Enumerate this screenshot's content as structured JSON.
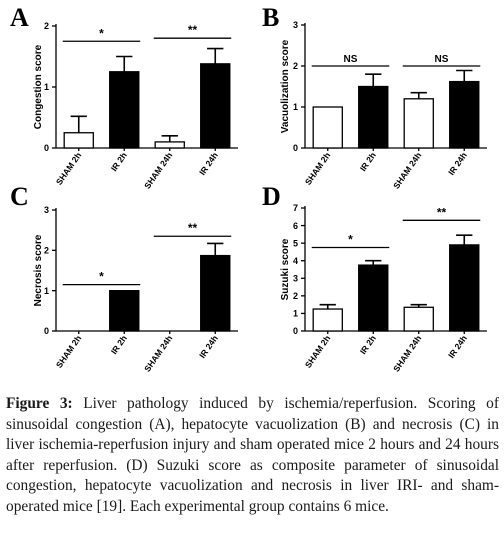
{
  "caption": {
    "label": "Figure 3:",
    "text": "Liver pathology induced by ischemia/reperfusion. Scoring of sinusoidal congestion (A), hepatocyte vacuolization (B) and necrosis (C) in liver ischemia-reperfusion injury and sham operated mice 2 hours and 24 hours after reperfusion. (D) Suzuki score as composite parameter of sinusoidal congestion, hepatocyte vacuolization and necrosis in liver IRI- and sham-operated mice [19]. Each experimental group contains 6 mice."
  },
  "chart_data": [
    {
      "panel": "A",
      "type": "bar",
      "ylabel": "Congestion score",
      "categories": [
        "SHAM 2h",
        "IR 2h",
        "SHAM 24h",
        "IR 24h"
      ],
      "values": [
        0.25,
        1.25,
        0.1,
        1.38
      ],
      "errors": [
        0.27,
        0.25,
        0.1,
        0.25
      ],
      "fills": [
        "#ffffff",
        "#000000",
        "#ffffff",
        "#000000"
      ],
      "ylim": [
        0,
        2
      ],
      "yticks": [
        "0",
        "1",
        "2"
      ],
      "significance": [
        {
          "from": 0,
          "to": 1,
          "label": "*",
          "y": 1.75
        },
        {
          "from": 2,
          "to": 3,
          "label": "**",
          "y": 1.8
        }
      ]
    },
    {
      "panel": "B",
      "type": "bar",
      "ylabel": "Vacuolization score",
      "categories": [
        "SHAM 2h",
        "IR 2h",
        "SHAM 24h",
        "IR 24h"
      ],
      "values": [
        1.0,
        1.5,
        1.2,
        1.62
      ],
      "errors": [
        0.0,
        0.3,
        0.15,
        0.27
      ],
      "fills": [
        "#ffffff",
        "#000000",
        "#ffffff",
        "#000000"
      ],
      "ylim": [
        0,
        3
      ],
      "yticks": [
        "0",
        "1",
        "2",
        "3"
      ],
      "significance": [
        {
          "from": 0,
          "to": 1,
          "label": "NS",
          "y": 2.0
        },
        {
          "from": 2,
          "to": 3,
          "label": "NS",
          "y": 2.0
        }
      ]
    },
    {
      "panel": "C",
      "type": "bar",
      "ylabel": "Necrosis score",
      "categories": [
        "SHAM 2h",
        "IR 2h",
        "SHAM 24h",
        "IR 24h"
      ],
      "values": [
        0,
        1.0,
        0,
        1.87
      ],
      "errors": [
        0,
        0,
        0,
        0.3
      ],
      "fills": [
        "#ffffff",
        "#000000",
        "#ffffff",
        "#000000"
      ],
      "ylim": [
        0,
        3
      ],
      "yticks": [
        "0",
        "1",
        "2",
        "3"
      ],
      "significance": [
        {
          "from": 0,
          "to": 1,
          "label": "*",
          "y": 1.15
        },
        {
          "from": 2,
          "to": 3,
          "label": "**",
          "y": 2.35
        }
      ]
    },
    {
      "panel": "D",
      "type": "bar",
      "ylabel": "Suzuki score",
      "categories": [
        "SHAM 2h",
        "IR 2h",
        "SHAM 24h",
        "IR 24h"
      ],
      "values": [
        1.25,
        3.75,
        1.35,
        4.9
      ],
      "errors": [
        0.25,
        0.25,
        0.15,
        0.55
      ],
      "fills": [
        "#ffffff",
        "#000000",
        "#ffffff",
        "#000000"
      ],
      "ylim": [
        0,
        7
      ],
      "yticks": [
        "0",
        "1",
        "2",
        "3",
        "4",
        "5",
        "6",
        "7"
      ],
      "significance": [
        {
          "from": 0,
          "to": 1,
          "label": "*",
          "y": 4.75
        },
        {
          "from": 2,
          "to": 3,
          "label": "**",
          "y": 6.3
        }
      ]
    }
  ]
}
